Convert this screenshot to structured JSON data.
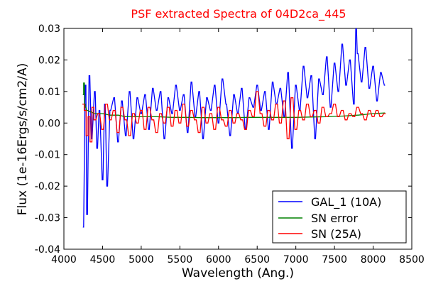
{
  "chart_data": {
    "type": "line",
    "title": "PSF extracted Spectra of 04D2ca_445",
    "xlabel": "Wavelength (Ang.)",
    "ylabel": "Flux (1e-16Ergs/s/cm2/A)",
    "xlim": [
      4000,
      8500
    ],
    "ylim": [
      -0.04,
      0.03
    ],
    "xticks": [
      4000,
      4500,
      5000,
      5500,
      6000,
      6500,
      7000,
      7500,
      8000,
      8500
    ],
    "xtick_labels": [
      "4000",
      "4500",
      "5000",
      "5500",
      "6000",
      "6500",
      "7000",
      "7500",
      "8000",
      "8500"
    ],
    "yticks": [
      -0.04,
      -0.03,
      -0.02,
      -0.01,
      0.0,
      0.01,
      0.02,
      0.03
    ],
    "ytick_labels": [
      "-0.04",
      "-0.03",
      "-0.02",
      "-0.01",
      "0.00",
      "0.01",
      "0.02",
      "0.03"
    ],
    "grid": false,
    "legend_position": "lower-right",
    "series": [
      {
        "name": "GAL_1 (10A)",
        "color": "#0000ff",
        "step": 10,
        "x": [
          4250,
          4280,
          4300,
          4330,
          4360,
          4400,
          4430,
          4460,
          4500,
          4530,
          4560,
          4600,
          4650,
          4700,
          4750,
          4800,
          4850,
          4900,
          4950,
          5000,
          5050,
          5100,
          5150,
          5200,
          5250,
          5300,
          5350,
          5400,
          5450,
          5500,
          5550,
          5600,
          5650,
          5700,
          5750,
          5800,
          5850,
          5900,
          5950,
          6000,
          6050,
          6100,
          6150,
          6200,
          6250,
          6300,
          6350,
          6400,
          6450,
          6500,
          6550,
          6600,
          6650,
          6700,
          6750,
          6800,
          6850,
          6900,
          6950,
          7000,
          7050,
          7100,
          7150,
          7200,
          7250,
          7300,
          7350,
          7400,
          7450,
          7500,
          7550,
          7600,
          7650,
          7700,
          7750,
          7780,
          7800,
          7850,
          7900,
          7950,
          8000,
          8050,
          8100,
          8150
        ],
        "y": [
          -0.033,
          0.012,
          -0.029,
          0.015,
          -0.005,
          0.01,
          -0.008,
          0.004,
          -0.018,
          0.006,
          -0.02,
          0.004,
          0.008,
          -0.006,
          0.007,
          -0.004,
          0.01,
          -0.005,
          0.008,
          0.003,
          0.009,
          -0.002,
          0.011,
          0.004,
          0.01,
          -0.005,
          0.008,
          0.003,
          0.012,
          0.004,
          0.009,
          -0.003,
          0.013,
          0.002,
          0.01,
          -0.005,
          0.008,
          0.004,
          0.012,
          0.0,
          0.014,
          0.006,
          -0.004,
          0.009,
          0.003,
          0.011,
          -0.002,
          0.008,
          0.005,
          0.012,
          0.004,
          0.01,
          -0.002,
          0.013,
          0.006,
          0.011,
          0.002,
          0.016,
          -0.008,
          0.012,
          0.004,
          0.018,
          0.008,
          0.015,
          -0.005,
          0.014,
          0.009,
          0.021,
          0.005,
          0.019,
          0.01,
          0.025,
          0.012,
          0.02,
          0.006,
          0.03,
          0.022,
          0.013,
          0.024,
          0.011,
          0.018,
          0.007,
          0.016,
          0.012
        ]
      },
      {
        "name": "SN error",
        "color": "#008000",
        "step": 10,
        "x": [
          4250,
          4260,
          4270,
          4280,
          4300,
          4350,
          4400,
          4500,
          4600,
          4700,
          4800,
          4900,
          5000,
          5200,
          5400,
          5600,
          5800,
          6000,
          6200,
          6400,
          6600,
          6800,
          7000,
          7200,
          7400,
          7600,
          7800,
          8000,
          8150
        ],
        "y": [
          0.009,
          0.0127,
          0.006,
          0.005,
          0.004,
          0.0035,
          0.003,
          0.003,
          0.0025,
          0.0025,
          0.002,
          0.002,
          0.002,
          0.002,
          0.0018,
          0.0018,
          0.0017,
          0.0017,
          0.0017,
          0.0018,
          0.0018,
          0.0018,
          0.0018,
          0.0019,
          0.002,
          0.0022,
          0.0025,
          0.003,
          0.0032
        ]
      },
      {
        "name": "SN (25A)",
        "color": "#ff0000",
        "step": 25,
        "x": [
          4250,
          4275,
          4300,
          4325,
          4350,
          4375,
          4400,
          4450,
          4500,
          4550,
          4600,
          4650,
          4700,
          4750,
          4800,
          4850,
          4900,
          4950,
          5000,
          5050,
          5100,
          5150,
          5200,
          5250,
          5300,
          5350,
          5400,
          5450,
          5500,
          5550,
          5600,
          5650,
          5700,
          5750,
          5800,
          5850,
          5900,
          5950,
          6000,
          6050,
          6100,
          6150,
          6200,
          6250,
          6300,
          6350,
          6400,
          6450,
          6500,
          6550,
          6600,
          6650,
          6700,
          6750,
          6800,
          6850,
          6900,
          6950,
          7000,
          7050,
          7100,
          7150,
          7200,
          7250,
          7300,
          7350,
          7400,
          7450,
          7500,
          7550,
          7600,
          7650,
          7700,
          7750,
          7800,
          7850,
          7900,
          7950,
          8000,
          8050,
          8100,
          8150
        ],
        "y": [
          0.006,
          0.004,
          -0.004,
          0.002,
          -0.006,
          0.005,
          0.001,
          0.003,
          -0.002,
          0.006,
          0.001,
          0.004,
          -0.003,
          0.005,
          0.001,
          -0.004,
          0.003,
          0.0,
          0.004,
          -0.002,
          0.005,
          0.001,
          -0.003,
          0.003,
          0.0,
          0.005,
          -0.001,
          0.004,
          0.0,
          0.006,
          -0.001,
          0.004,
          0.001,
          -0.003,
          0.005,
          0.0,
          0.003,
          -0.002,
          0.005,
          0.001,
          -0.001,
          0.004,
          0.0,
          0.003,
          0.001,
          -0.002,
          0.004,
          0.002,
          0.01,
          0.003,
          -0.001,
          0.004,
          0.001,
          0.006,
          0.0,
          0.007,
          -0.005,
          0.008,
          -0.002,
          0.004,
          0.001,
          0.006,
          0.002,
          0.004,
          0.0,
          0.005,
          0.002,
          0.003,
          0.006,
          0.002,
          0.004,
          0.001,
          0.003,
          0.002,
          0.005,
          0.003,
          0.001,
          0.004,
          0.002,
          0.004,
          0.002,
          0.003
        ]
      }
    ]
  }
}
